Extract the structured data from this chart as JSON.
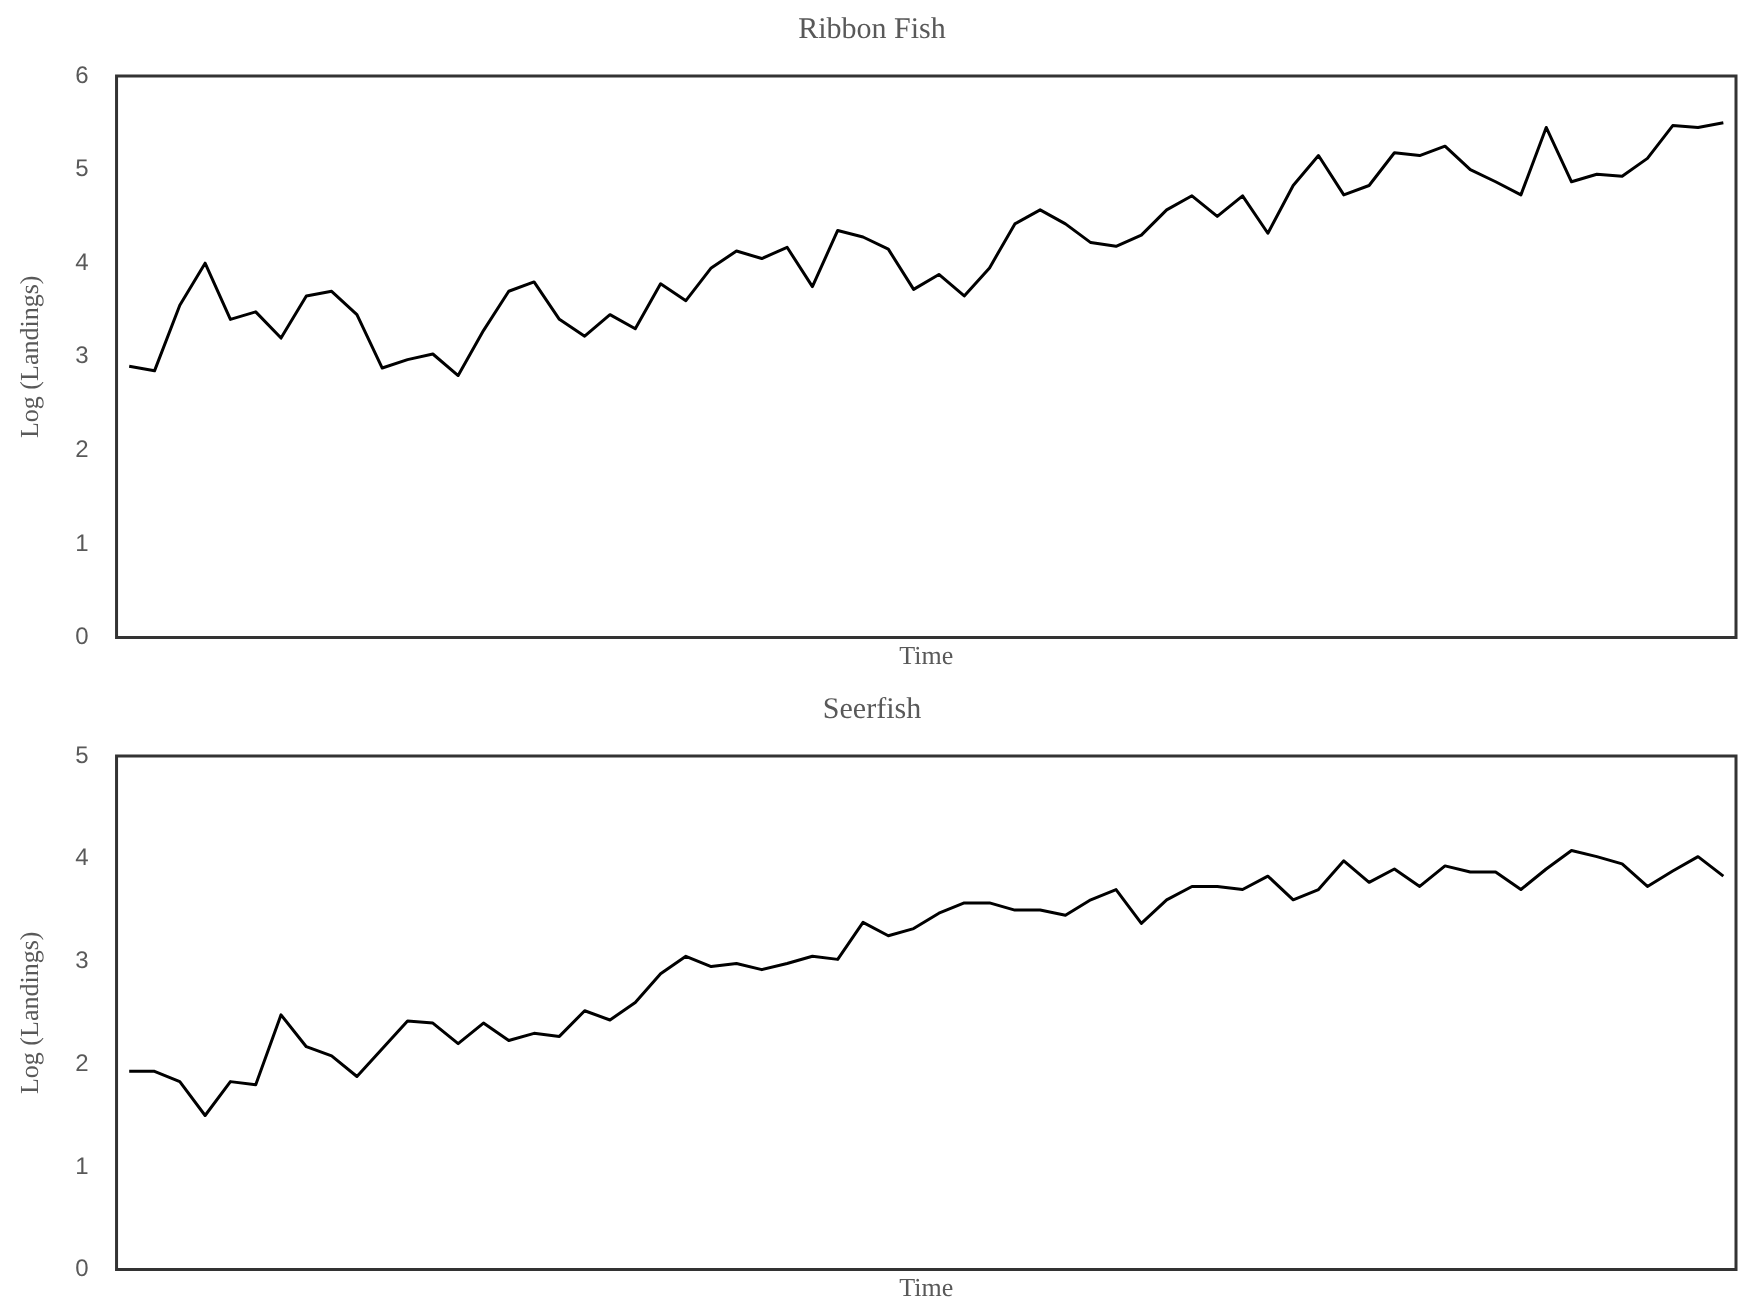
{
  "chart_data": [
    {
      "type": "line",
      "title": "Ribbon Fish",
      "xlabel": "Time",
      "ylabel": "Log (Landings)",
      "categories": [
        null,
        null,
        null,
        null,
        null,
        null,
        null,
        null,
        null,
        null,
        null,
        null,
        null,
        null,
        null,
        null,
        null,
        null,
        null,
        null,
        null,
        null,
        null,
        null,
        null,
        null,
        null,
        null,
        null,
        null,
        null,
        null,
        null,
        null,
        null,
        null,
        null,
        null,
        null,
        null,
        null,
        null,
        null,
        null,
        null,
        null,
        null,
        null,
        null,
        null,
        null,
        null,
        null,
        null,
        null,
        null,
        null,
        null,
        null,
        null,
        null,
        null,
        null,
        null
      ],
      "series": [
        {
          "color": "#000000",
          "values": [
            2.9,
            2.85,
            3.55,
            4.0,
            3.4,
            3.48,
            3.2,
            3.65,
            3.7,
            3.45,
            2.88,
            2.97,
            3.03,
            2.8,
            3.28,
            3.7,
            3.8,
            3.4,
            3.22,
            3.45,
            3.3,
            3.78,
            3.6,
            3.95,
            4.13,
            4.05,
            4.17,
            3.75,
            4.35,
            4.28,
            4.15,
            3.72,
            3.88,
            3.65,
            3.95,
            4.42,
            4.57,
            4.42,
            4.22,
            4.18,
            4.3,
            4.57,
            4.72,
            4.5,
            4.72,
            4.32,
            4.83,
            5.15,
            4.73,
            4.83,
            5.18,
            5.15,
            5.25,
            5.0,
            4.87,
            4.73,
            5.45,
            4.87,
            4.95,
            4.93,
            5.12,
            5.47,
            5.45,
            5.5
          ]
        }
      ],
      "ylim": [
        0,
        6
      ],
      "yticks": [
        0,
        1,
        2,
        3,
        4,
        5,
        6
      ],
      "grid": false,
      "legend": false,
      "marker": "none",
      "line_style": "solid",
      "tick_labels": "y"
    },
    {
      "type": "line",
      "title": "Seerfish",
      "xlabel": "Time",
      "ylabel": "Log (Landings)",
      "categories": [
        null,
        null,
        null,
        null,
        null,
        null,
        null,
        null,
        null,
        null,
        null,
        null,
        null,
        null,
        null,
        null,
        null,
        null,
        null,
        null,
        null,
        null,
        null,
        null,
        null,
        null,
        null,
        null,
        null,
        null,
        null,
        null,
        null,
        null,
        null,
        null,
        null,
        null,
        null,
        null,
        null,
        null,
        null,
        null,
        null,
        null,
        null,
        null,
        null,
        null,
        null,
        null,
        null,
        null,
        null,
        null,
        null,
        null,
        null,
        null,
        null,
        null,
        null,
        null
      ],
      "series": [
        {
          "color": "#000000",
          "values": [
            1.93,
            1.93,
            1.83,
            1.5,
            1.83,
            1.8,
            2.48,
            2.17,
            2.08,
            1.88,
            2.15,
            2.42,
            2.4,
            2.2,
            2.4,
            2.23,
            2.3,
            2.27,
            2.52,
            2.43,
            2.6,
            2.88,
            3.05,
            2.95,
            2.98,
            2.92,
            2.98,
            3.05,
            3.02,
            3.38,
            3.25,
            3.32,
            3.47,
            3.57,
            3.57,
            3.5,
            3.5,
            3.45,
            3.6,
            3.7,
            3.37,
            3.6,
            3.73,
            3.73,
            3.7,
            3.83,
            3.6,
            3.7,
            3.98,
            3.77,
            3.9,
            3.73,
            3.93,
            3.87,
            3.87,
            3.7,
            3.9,
            4.08,
            4.02,
            3.95,
            3.73,
            3.88,
            4.02,
            3.83
          ]
        }
      ],
      "ylim": [
        0,
        5
      ],
      "yticks": [
        0,
        1,
        2,
        3,
        4,
        5
      ],
      "grid": false,
      "legend": false,
      "marker": "none",
      "line_style": "solid",
      "tick_labels": "y"
    }
  ]
}
